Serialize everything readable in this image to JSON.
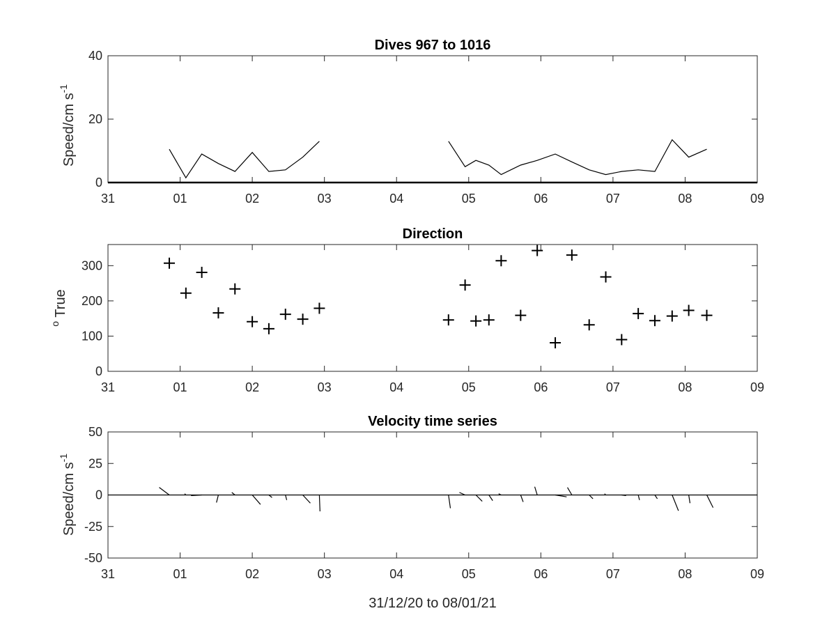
{
  "chart_data": [
    {
      "type": "line",
      "title": "Dives 967 to 1016",
      "ylabel": "Speed/cm s",
      "ylabel_sup": "-1",
      "xlim": [
        0,
        9
      ],
      "ylim": [
        0,
        40
      ],
      "yticks": [
        0,
        20,
        40
      ],
      "xtick_labels": [
        "31",
        "01",
        "02",
        "03",
        "04",
        "05",
        "06",
        "07",
        "08",
        "09"
      ],
      "grid": false,
      "series": [
        {
          "x": [
            0.85,
            1.08,
            1.3,
            1.53,
            1.76,
            2.0,
            2.23,
            2.46,
            2.7,
            2.93
          ],
          "y": [
            10.5,
            1.5,
            9.0,
            6.0,
            3.5,
            9.5,
            3.5,
            4.0,
            8.0,
            13.0
          ]
        },
        {
          "x": [
            4.72,
            4.95,
            5.1,
            5.28,
            5.45,
            5.72,
            5.95,
            6.2,
            6.43,
            6.67,
            6.9,
            7.12,
            7.35,
            7.58,
            7.82,
            8.05,
            8.3
          ],
          "y": [
            13.0,
            5.0,
            7.0,
            5.5,
            2.5,
            5.5,
            7.0,
            9.0,
            6.5,
            4.0,
            2.5,
            3.5,
            4.0,
            3.5,
            13.5,
            8.0,
            10.5
          ]
        }
      ]
    },
    {
      "type": "scatter",
      "title": "Direction",
      "ylabel_sup": "o",
      "ylabel": " True",
      "xlim": [
        0,
        9
      ],
      "ylim": [
        0,
        360
      ],
      "yticks": [
        0,
        100,
        200,
        300
      ],
      "xtick_labels": [
        "31",
        "01",
        "02",
        "03",
        "04",
        "05",
        "06",
        "07",
        "08",
        "09"
      ],
      "marker": "+",
      "series": [
        {
          "x": [
            0.85,
            1.08,
            1.3,
            1.53,
            1.76,
            2.0,
            2.23,
            2.46,
            2.7,
            2.93,
            4.72,
            4.95,
            5.1,
            5.28,
            5.45,
            5.72,
            5.95,
            6.2,
            6.43,
            6.67,
            6.9,
            7.12,
            7.35,
            7.58,
            7.82,
            8.05,
            8.3
          ],
          "y": [
            307,
            222,
            281,
            166,
            234,
            141,
            121,
            162,
            148,
            179,
            146,
            245,
            143,
            146,
            314,
            159,
            343,
            81,
            330,
            132,
            268,
            90,
            164,
            144,
            157,
            173,
            159
          ]
        }
      ]
    },
    {
      "type": "quiver",
      "title": "Velocity time series",
      "ylabel": "Speed/cm s",
      "ylabel_sup": "-1",
      "xlabel": "31/12/20 to 08/01/21",
      "xlim": [
        0,
        9
      ],
      "ylim": [
        -50,
        50
      ],
      "yticks": [
        -50,
        -25,
        0,
        25,
        50
      ],
      "xtick_labels": [
        "31",
        "01",
        "02",
        "03",
        "04",
        "05",
        "06",
        "07",
        "08",
        "09"
      ],
      "series": [
        {
          "name": "",
          "x": [
            0.85,
            1.08,
            1.3,
            1.53,
            1.76,
            2.0,
            2.23,
            2.46,
            2.7,
            2.93,
            4.72,
            4.95,
            5.1,
            5.28,
            5.45,
            5.72,
            5.95,
            6.2,
            6.43,
            6.67,
            6.9,
            7.12,
            7.35,
            7.58,
            7.82,
            8.05,
            8.3
          ],
          "u": [
            -8.0,
            -1.0,
            -8.5,
            -1.5,
            -2.5,
            6.5,
            2.5,
            1.0,
            6.0,
            0.5,
            1.5,
            -4.5,
            5.0,
            3.0,
            -2.0,
            2.0,
            -2.0,
            9.0,
            -3.5,
            3.0,
            -1.0,
            3.5,
            1.0,
            2.0,
            5.0,
            1.0,
            5.0
          ],
          "v": [
            6.0,
            1.0,
            -0.5,
            -6.0,
            2.0,
            -7.5,
            -2.0,
            -4.0,
            -6.5,
            -13.0,
            -10.5,
            2.0,
            -5.0,
            -4.5,
            1.0,
            -5.5,
            6.5,
            -1.5,
            6.0,
            -3.0,
            1.0,
            -0.5,
            -4.0,
            -3.0,
            -12.5,
            -6.5,
            -10.0
          ]
        }
      ]
    }
  ]
}
